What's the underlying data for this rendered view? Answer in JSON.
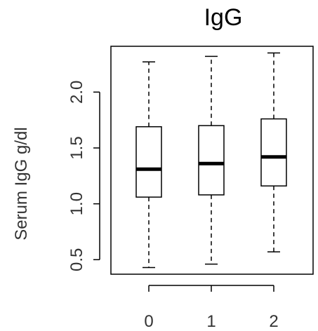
{
  "chart_data": {
    "type": "box",
    "title": "IgG",
    "xlabel": "",
    "ylabel": "Serum IgG g/dl",
    "categories": [
      "0",
      "1",
      "2"
    ],
    "boxes": [
      {
        "category": "0",
        "whisker_low": 0.43,
        "q1": 1.06,
        "median": 1.31,
        "q3": 1.69,
        "whisker_high": 2.27
      },
      {
        "category": "1",
        "whisker_low": 0.46,
        "q1": 1.08,
        "median": 1.36,
        "q3": 1.7,
        "whisker_high": 2.32
      },
      {
        "category": "2",
        "whisker_low": 0.57,
        "q1": 1.16,
        "median": 1.42,
        "q3": 1.76,
        "whisker_high": 2.35
      }
    ],
    "yticks": [
      0.5,
      1.0,
      1.5,
      2.0
    ],
    "ytick_labels": [
      "0.5",
      "1.0",
      "1.5",
      "2.0"
    ],
    "ylim": [
      0.37,
      2.41
    ],
    "grid": false,
    "colors": {
      "box_fill": "#ffffff",
      "stroke": "#000000",
      "text": "#333333"
    }
  }
}
